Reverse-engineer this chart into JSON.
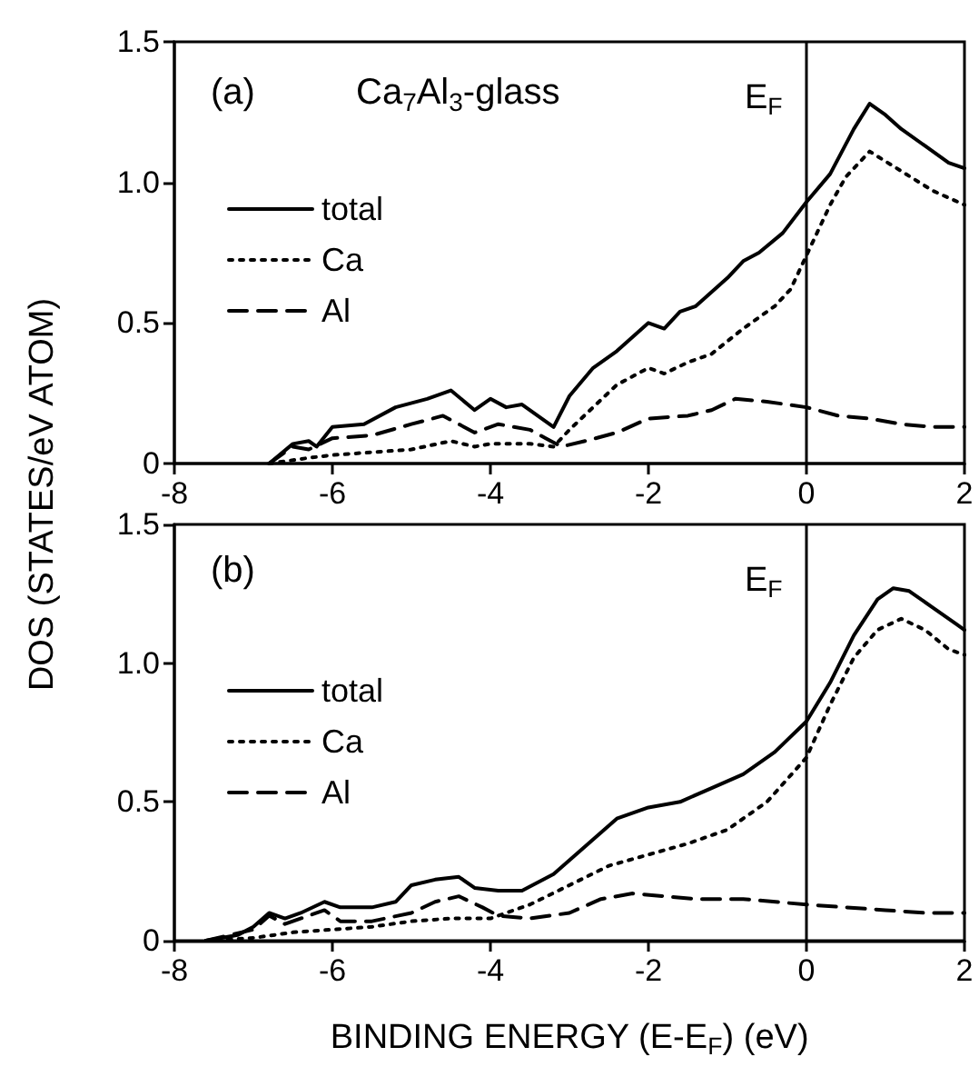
{
  "chart_data": [
    {
      "type": "line",
      "ylabel": "DOS (STATES/eV ATOM)",
      "annotations": [
        "(a)",
        "Ca$_{7}$Al$_{3}$-glass"
      ],
      "xlim": [
        -8,
        2
      ],
      "xticks": [
        -8,
        -6,
        -4,
        -2,
        0,
        2
      ],
      "ylim": [
        0,
        1.5
      ],
      "yticks": [
        0,
        0.5,
        {
          "value": 1,
          "label": "1.0"
        },
        1.5
      ],
      "grid": false,
      "legend": "left",
      "marker": "none",
      "ref_lines": [
        {
          "axis": "x",
          "value": 0,
          "label": "E$_{F}$",
          "color": "#000000"
        }
      ],
      "series": [
        {
          "name": "total",
          "color": "#000000",
          "line_style": "solid",
          "x": [
            -6.8,
            -6.5,
            -6.3,
            -6.2,
            -6.0,
            -5.6,
            -5.2,
            -4.8,
            -4.5,
            -4.2,
            -4.0,
            -3.8,
            -3.6,
            -3.2,
            -3.0,
            -2.7,
            -2.4,
            -2.0,
            -1.8,
            -1.6,
            -1.4,
            -1.0,
            -0.8,
            -0.6,
            -0.3,
            0,
            0.3,
            0.6,
            0.8,
            1.0,
            1.2,
            1.5,
            1.8,
            2.0
          ],
          "values": [
            0,
            0.07,
            0.08,
            0.06,
            0.13,
            0.14,
            0.2,
            0.23,
            0.26,
            0.19,
            0.23,
            0.2,
            0.21,
            0.13,
            0.24,
            0.34,
            0.4,
            0.5,
            0.48,
            0.54,
            0.56,
            0.66,
            0.72,
            0.75,
            0.82,
            0.93,
            1.03,
            1.19,
            1.28,
            1.24,
            1.19,
            1.13,
            1.07,
            1.05
          ]
        },
        {
          "name": "Ca",
          "color": "#000000",
          "line_style": "dotted",
          "x": [
            -6.8,
            -6.3,
            -6.0,
            -5.5,
            -5.0,
            -4.5,
            -4.2,
            -4.0,
            -3.5,
            -3.2,
            -3.0,
            -2.7,
            -2.4,
            -2.0,
            -1.8,
            -1.5,
            -1.2,
            -0.8,
            -0.4,
            -0.2,
            0,
            0.3,
            0.5,
            0.8,
            1.2,
            1.6,
            2.0
          ],
          "values": [
            0,
            0.02,
            0.03,
            0.04,
            0.05,
            0.08,
            0.06,
            0.07,
            0.07,
            0.06,
            0.12,
            0.2,
            0.28,
            0.34,
            0.32,
            0.36,
            0.39,
            0.48,
            0.56,
            0.62,
            0.74,
            0.92,
            1.02,
            1.11,
            1.04,
            0.97,
            0.92
          ]
        },
        {
          "name": "Al",
          "color": "#000000",
          "line_style": "dashed",
          "x": [
            -6.8,
            -6.5,
            -6.3,
            -6.0,
            -5.5,
            -5.0,
            -4.6,
            -4.2,
            -3.9,
            -3.5,
            -3.3,
            -3.1,
            -2.8,
            -2.4,
            -2.0,
            -1.5,
            -1.2,
            -0.9,
            -0.5,
            0,
            0.4,
            0.8,
            1.2,
            1.6,
            2.0
          ],
          "values": [
            0,
            0.06,
            0.05,
            0.09,
            0.1,
            0.14,
            0.17,
            0.11,
            0.14,
            0.12,
            0.09,
            0.06,
            0.08,
            0.11,
            0.16,
            0.17,
            0.19,
            0.23,
            0.22,
            0.2,
            0.17,
            0.16,
            0.14,
            0.13,
            0.13
          ]
        }
      ]
    },
    {
      "type": "line",
      "xlabel": "BINDING ENERGY (E-E$_{F}$) (eV)",
      "annotations": [
        "(b)"
      ],
      "xlim": [
        -8,
        2
      ],
      "xticks": [
        -8,
        -6,
        -4,
        -2,
        0,
        2
      ],
      "ylim": [
        0,
        1.5
      ],
      "yticks": [
        0,
        0.5,
        {
          "value": 1,
          "label": "1.0"
        },
        1.5
      ],
      "grid": false,
      "legend": "left",
      "marker": "none",
      "ref_lines": [
        {
          "axis": "x",
          "value": 0,
          "label": "E$_{F}$",
          "color": "#000000"
        }
      ],
      "series": [
        {
          "name": "total",
          "color": "#000000",
          "line_style": "solid",
          "x": [
            -7.6,
            -7.2,
            -7.0,
            -6.8,
            -6.6,
            -6.4,
            -6.1,
            -5.9,
            -5.5,
            -5.2,
            -5.0,
            -4.7,
            -4.4,
            -4.2,
            -3.9,
            -3.6,
            -3.2,
            -2.8,
            -2.4,
            -2.0,
            -1.6,
            -1.2,
            -0.8,
            -0.4,
            0,
            0.3,
            0.6,
            0.9,
            1.1,
            1.3,
            1.6,
            1.9,
            2.0
          ],
          "values": [
            0,
            0.02,
            0.05,
            0.1,
            0.08,
            0.1,
            0.14,
            0.12,
            0.12,
            0.14,
            0.2,
            0.22,
            0.23,
            0.19,
            0.18,
            0.18,
            0.24,
            0.34,
            0.44,
            0.48,
            0.5,
            0.55,
            0.6,
            0.68,
            0.79,
            0.93,
            1.1,
            1.23,
            1.27,
            1.26,
            1.2,
            1.14,
            1.12
          ]
        },
        {
          "name": "Ca",
          "color": "#000000",
          "line_style": "dotted",
          "x": [
            -7.6,
            -7.0,
            -6.5,
            -6.0,
            -5.5,
            -5.0,
            -4.5,
            -4.0,
            -3.5,
            -3.0,
            -2.5,
            -2.0,
            -1.5,
            -1.0,
            -0.5,
            0,
            0.3,
            0.6,
            0.9,
            1.2,
            1.5,
            1.8,
            2.0
          ],
          "values": [
            0,
            0.01,
            0.03,
            0.04,
            0.05,
            0.07,
            0.08,
            0.08,
            0.13,
            0.2,
            0.27,
            0.31,
            0.35,
            0.4,
            0.5,
            0.66,
            0.85,
            1.02,
            1.12,
            1.16,
            1.12,
            1.05,
            1.03
          ]
        },
        {
          "name": "Al",
          "color": "#000000",
          "line_style": "dashed",
          "x": [
            -7.6,
            -7.0,
            -6.8,
            -6.6,
            -6.1,
            -5.9,
            -5.5,
            -5.0,
            -4.7,
            -4.4,
            -4.1,
            -3.9,
            -3.5,
            -3.0,
            -2.6,
            -2.2,
            -1.8,
            -1.4,
            -0.8,
            0,
            0.5,
            1.0,
            1.5,
            2.0
          ],
          "values": [
            0,
            0.04,
            0.09,
            0.06,
            0.11,
            0.07,
            0.07,
            0.1,
            0.14,
            0.16,
            0.12,
            0.09,
            0.08,
            0.1,
            0.15,
            0.17,
            0.16,
            0.15,
            0.15,
            0.13,
            0.12,
            0.11,
            0.1,
            0.1
          ]
        }
      ]
    }
  ]
}
